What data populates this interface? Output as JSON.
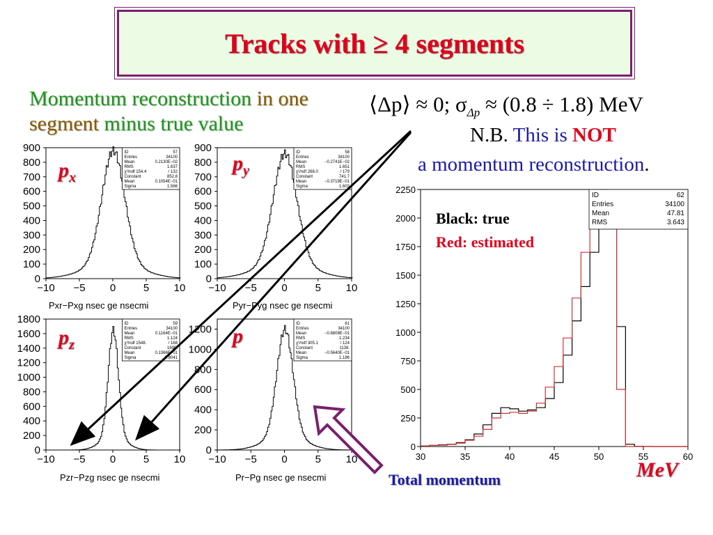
{
  "title": {
    "prefix": "Tracks with ",
    "symbol": "≥",
    "suffix": " 4 segments"
  },
  "subtitle": {
    "part1": "Momentum reconstruction",
    "part2": "in one",
    "part3": "segment",
    "part4": "minus true value"
  },
  "formula": "⟨Δp⟩ ≈ 0; σ",
  "formula_sub": "Δp",
  "formula_rest": " ≈ (0.8 ÷ 1.8) MeV",
  "note": {
    "nb": "N.B.",
    "this_is": "This is",
    "not": "NOT",
    "a": "a",
    "reconstruction": "momentum reconstruction",
    "dot": "."
  },
  "legend": {
    "black": "Black: true",
    "red": "Red: estimated"
  },
  "caption_total": "Total momentum",
  "unit_label": "MeV",
  "colors": {
    "red": "#e0001b",
    "green": "#1a9a1a",
    "blue": "#1a1aa8",
    "purple": "#7a1f6e"
  },
  "chart_data": [
    {
      "id": "px",
      "type": "bar",
      "label": "p",
      "label_sub": "x",
      "xlabel": "Pxr−Pxg nsec ge nsecmi",
      "xlim": [
        -10,
        10
      ],
      "ylim": [
        0,
        900
      ],
      "yticks": [
        0,
        100,
        200,
        300,
        400,
        500,
        600,
        700,
        800,
        900
      ],
      "xticks": [
        -10,
        -5,
        0,
        5,
        10
      ],
      "mean": 0,
      "sigma": 1.7,
      "peak": 880,
      "stats": [
        [
          "ID",
          "57"
        ],
        [
          "Entries",
          "34100"
        ],
        [
          "Mean",
          "0.2130E−02"
        ],
        [
          "RMS",
          "1.637"
        ],
        [
          "χ²/ndf 154.4",
          "/ 132"
        ],
        [
          "Constant",
          "852.8"
        ],
        [
          "Mean",
          "0.1054E−01"
        ],
        [
          "Sigma",
          "1.566"
        ]
      ]
    },
    {
      "id": "py",
      "type": "bar",
      "label": "p",
      "label_sub": "y",
      "xlabel": "Pyr−Pyg nsec ge nsecmi",
      "xlim": [
        -10,
        10
      ],
      "ylim": [
        0,
        900
      ],
      "yticks": [
        0,
        100,
        200,
        300,
        400,
        500,
        600,
        700,
        800,
        900
      ],
      "xticks": [
        -10,
        -5,
        0,
        5,
        10
      ],
      "mean": 0,
      "sigma": 1.75,
      "peak": 860,
      "stats": [
        [
          "ID",
          "58"
        ],
        [
          "Entries",
          "34100"
        ],
        [
          "Mean",
          "−0.2741E−02"
        ],
        [
          "RMS",
          "1.651"
        ],
        [
          "χ²/ndf 268.0",
          "/ 179"
        ],
        [
          "Constant",
          "741.7"
        ],
        [
          "Mean",
          "−0.3719E−01"
        ],
        [
          "Sigma",
          "1.603"
        ]
      ]
    },
    {
      "id": "pz",
      "type": "bar",
      "label": "p",
      "label_sub": "z",
      "xlabel": "Pzr−Pzg nsec ge nsecmi",
      "xlim": [
        -10,
        10
      ],
      "ylim": [
        0,
        1800
      ],
      "yticks": [
        0,
        200,
        400,
        600,
        800,
        1000,
        1200,
        1400,
        1600,
        1800
      ],
      "xticks": [
        -10,
        -5,
        0,
        5,
        10
      ],
      "mean": 0,
      "sigma": 0.75,
      "peak": 1650,
      "stats": [
        [
          "ID",
          "59"
        ],
        [
          "Entries",
          "34100"
        ],
        [
          "Mean",
          "0.1164E−01"
        ],
        [
          "RMS",
          "1.124"
        ],
        [
          "χ²/ndf 1548.",
          "/ 168"
        ],
        [
          "Constant",
          "1690."
        ],
        [
          "Mean",
          "0.1366E−01"
        ],
        [
          "Sigma",
          "0.8041"
        ]
      ]
    },
    {
      "id": "p",
      "type": "bar",
      "label": "p",
      "label_sub": "",
      "xlabel": "Pr−Pg nsec ge nsecmi",
      "xlim": [
        -10,
        10
      ],
      "ylim": [
        0,
        1300
      ],
      "yticks": [
        0,
        200,
        400,
        600,
        800,
        1000,
        1200
      ],
      "xticks": [
        -10,
        -5,
        0,
        5,
        10
      ],
      "mean": 0,
      "sigma": 1.2,
      "peak": 1200,
      "stats": [
        [
          "ID",
          "61"
        ],
        [
          "Entries",
          "34100"
        ],
        [
          "Mean",
          "−0.6808E−01"
        ],
        [
          "RMS",
          "1.234"
        ],
        [
          "χ²/ndf 305.1",
          "/ 124"
        ],
        [
          "Constant",
          "1138."
        ],
        [
          "Mean",
          "−0.5640E−01"
        ],
        [
          "Sigma",
          "1.186"
        ]
      ]
    },
    {
      "id": "total",
      "type": "line",
      "xlim": [
        30,
        60
      ],
      "ylim": [
        0,
        2250
      ],
      "xticks": [
        30,
        35,
        40,
        45,
        50,
        55,
        60
      ],
      "yticks": [
        0,
        250,
        500,
        750,
        1000,
        1250,
        1500,
        1750,
        2000,
        2250
      ],
      "x": [
        30,
        31,
        32,
        33,
        34,
        35,
        36,
        37,
        38,
        39,
        40,
        41,
        42,
        43,
        44,
        45,
        46,
        47,
        48,
        49,
        50,
        51,
        52,
        53,
        54,
        55,
        56,
        57,
        58,
        59,
        60
      ],
      "series": [
        {
          "name": "true",
          "color": "#000000",
          "values": [
            5,
            10,
            15,
            20,
            35,
            60,
            110,
            190,
            290,
            340,
            330,
            310,
            320,
            340,
            420,
            560,
            800,
            1100,
            1400,
            1700,
            1950,
            2150,
            1050,
            20,
            2,
            1,
            0,
            0,
            0,
            0,
            0
          ]
        },
        {
          "name": "estimated",
          "color": "#cc3333",
          "values": [
            5,
            10,
            12,
            18,
            30,
            55,
            90,
            150,
            250,
            290,
            300,
            290,
            310,
            380,
            520,
            700,
            950,
            1300,
            1700,
            2050,
            2250,
            2100,
            500,
            0,
            0,
            0,
            0,
            0,
            0,
            0,
            0
          ]
        }
      ],
      "stats": [
        [
          "ID",
          "62"
        ],
        [
          "Entries",
          "34100"
        ],
        [
          "Mean",
          "47.81"
        ],
        [
          "RMS",
          "3.643"
        ]
      ]
    }
  ]
}
